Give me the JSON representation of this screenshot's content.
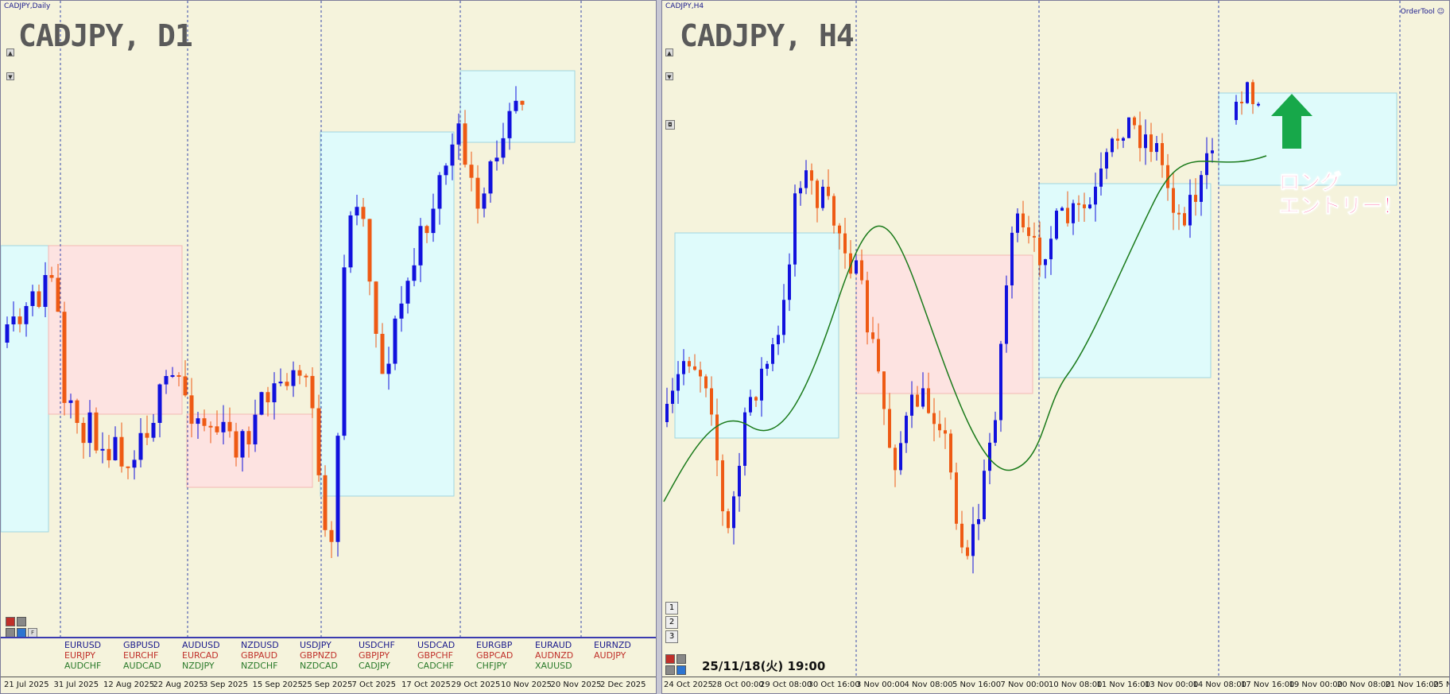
{
  "left": {
    "window_title": "CADJPY,Daily",
    "chart_title": "CADJPY, D1",
    "date_labels": [
      "21 Jul 2025",
      "31 Jul 2025",
      "12 Aug 2025",
      "22 Aug 2025",
      "3 Sep 2025",
      "15 Sep 2025",
      "25 Sep 2025",
      "7 Oct 2025",
      "17 Oct 2025",
      "29 Oct 2025",
      "10 Nov 2025",
      "20 Nov 2025",
      "2 Dec 2025"
    ],
    "side_buttons": [
      "▲",
      "▼"
    ],
    "bottom_buttons": [
      "F"
    ],
    "symbols": [
      [
        "EURUSD",
        "EURJPY",
        "AUDCHF"
      ],
      [
        "GBPUSD",
        "EURCHF",
        "AUDCAD"
      ],
      [
        "AUDUSD",
        "EURCAD",
        "NZDJPY"
      ],
      [
        "NZDUSD",
        "GBPAUD",
        "NZDCHF"
      ],
      [
        "USDJPY",
        "GBPNZD",
        "NZDCAD"
      ],
      [
        "USDCHF",
        "GBPJPY",
        "CADJPY"
      ],
      [
        "USDCAD",
        "GBPCHF",
        "CADCHF"
      ],
      [
        "EURGBP",
        "GBPCAD",
        "CHFJPY"
      ],
      [
        "EURAUD",
        "AUDNZD",
        "XAUUSD"
      ],
      [
        "EURNZD",
        "AUDJPY",
        ""
      ]
    ]
  },
  "right": {
    "window_title": "CADJPY,H4",
    "chart_title": "CADJPY, H4",
    "order_tool": "OrderTool",
    "date_labels": [
      "24 Oct 2025",
      "28 Oct 00:00",
      "29 Oct 08:00",
      "30 Oct 16:00",
      "3 Nov 00:00",
      "4 Nov 08:00",
      "5 Nov 16:00",
      "7 Nov 00:00",
      "10 Nov 08:00",
      "11 Nov 16:00",
      "13 Nov 00:00",
      "14 Nov 08:00",
      "17 Nov 16:00",
      "19 Nov 00:00",
      "20 Nov 08:00",
      "21 Nov 16:00",
      "25 N"
    ],
    "timeframe_buttons": [
      "1",
      "2",
      "3"
    ],
    "datestamp": "25/11/18(火) 19:00",
    "annotation": [
      "ロング",
      "エントリー！"
    ]
  },
  "colors": {
    "background": "#f5f3dc",
    "bull": "#1111dd",
    "bear": "#ee5a14",
    "zone_blue": "#dffbfb",
    "zone_pink": "#fde3e1",
    "ma_line": "#1a7a1a",
    "arrow": "#17a84a",
    "grid": "#3344aa"
  }
}
